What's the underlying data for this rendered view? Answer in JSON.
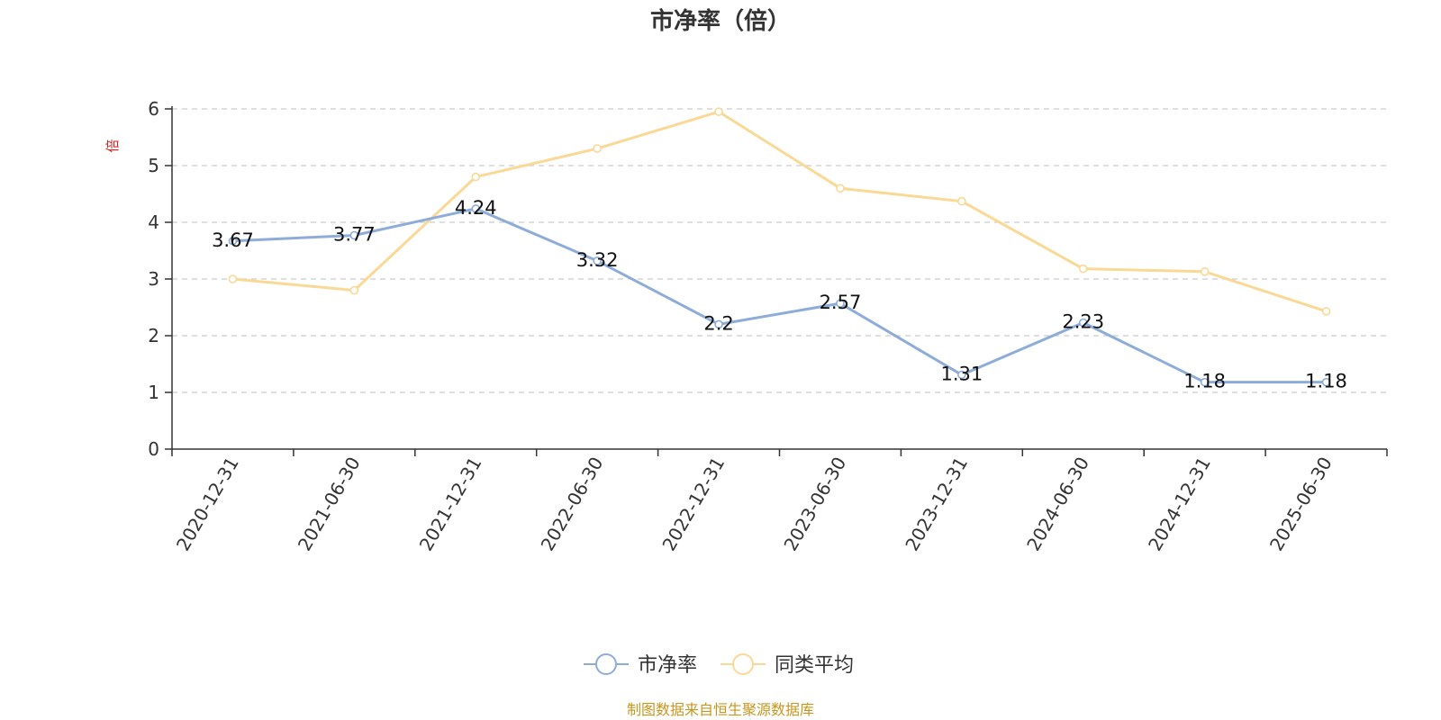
{
  "chart_data": {
    "type": "line",
    "title": "市净率（倍）",
    "ylabel": "倍",
    "xlabel": "",
    "ylim": [
      0,
      6
    ],
    "yticks": [
      0,
      1,
      2,
      3,
      4,
      5,
      6
    ],
    "grid": true,
    "legend_position": "bottom-center",
    "categories": [
      "2020-12-31",
      "2021-06-30",
      "2021-12-31",
      "2022-06-30",
      "2022-12-31",
      "2023-06-30",
      "2023-12-31",
      "2024-06-30",
      "2024-12-31",
      "2025-06-30"
    ],
    "series": [
      {
        "name": "市净率",
        "color": "#8eacd9",
        "values": [
          3.67,
          3.77,
          4.24,
          3.32,
          2.2,
          2.57,
          1.31,
          2.23,
          1.18,
          1.18
        ],
        "labels": [
          "3.67",
          "3.77",
          "4.24",
          "3.32",
          "2.2",
          "2.57",
          "1.31",
          "2.23",
          "1.18",
          "1.18"
        ]
      },
      {
        "name": "同类平均",
        "color": "#fad896",
        "values": [
          3.0,
          2.8,
          4.8,
          5.3,
          5.95,
          4.6,
          4.37,
          3.18,
          3.13,
          2.43
        ]
      }
    ]
  },
  "colors": {
    "unit_label": "#e02020",
    "source_text": "#c8961e",
    "axis": "#333333",
    "grid": "#cccccc"
  },
  "footer": {
    "source": "制图数据来自恒生聚源数据库"
  }
}
